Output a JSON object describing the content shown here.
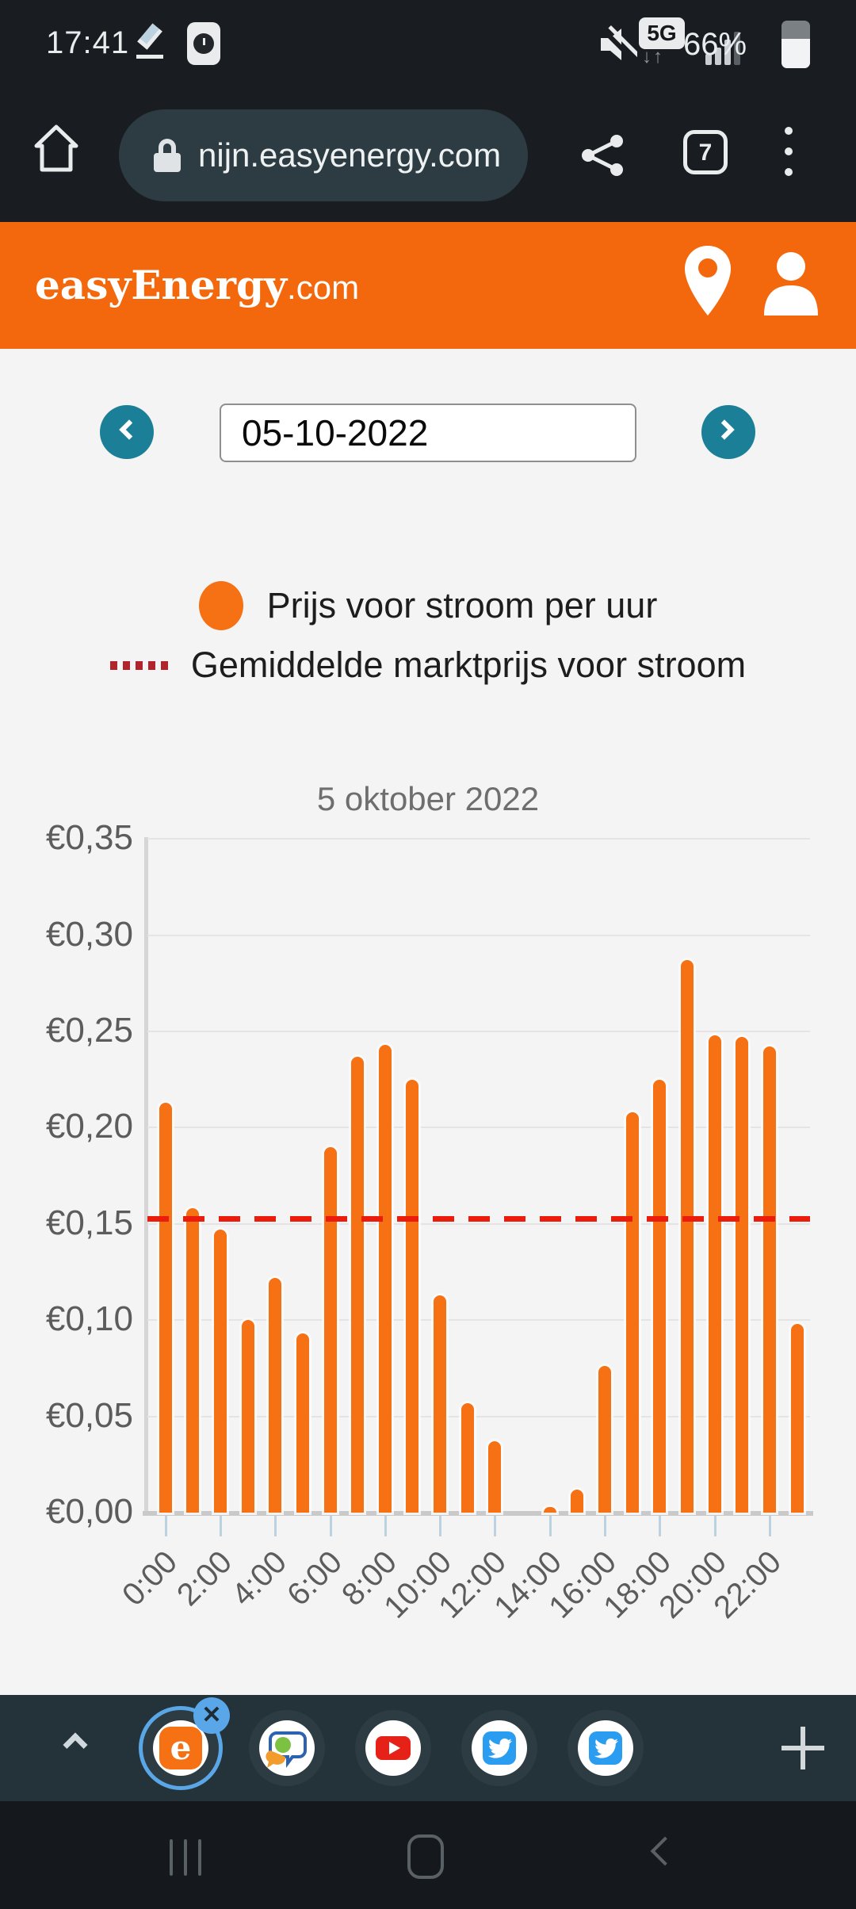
{
  "status_bar": {
    "time": "17:41",
    "battery": "66%",
    "network": "5G",
    "net_arrows": "↓↑"
  },
  "browser": {
    "url": "nijn.easyenergy.com",
    "tab_count": "7"
  },
  "site_header": {
    "brand": "easyEnergy",
    "tld": ".com"
  },
  "date_nav": {
    "value": "05-10-2022"
  },
  "legend": {
    "series_label": "Prijs voor stroom per uur",
    "average_label": "Gemiddelde marktprijs voor stroom"
  },
  "colors": {
    "accent_orange": "#f3680d",
    "bar_orange": "#f57113",
    "teal_button": "#1a7f97",
    "average_red": "#ec1c0c",
    "legend_dash_red": "#b3232b",
    "page_bg": "#f4f4f4",
    "toolbar_bg": "#24333a"
  },
  "chart_data": {
    "type": "bar",
    "title": "5 oktober 2022",
    "ylabel": "",
    "xlabel": "",
    "currency": "EUR/kWh",
    "ylim": [
      0,
      0.35
    ],
    "ytick_labels": [
      "€0,35",
      "€0,30",
      "€0,25",
      "€0,20",
      "€0,15",
      "€0,10",
      "€0,05",
      "€0,00"
    ],
    "xtick_labels": [
      "0:00",
      "2:00",
      "4:00",
      "6:00",
      "8:00",
      "10:00",
      "12:00",
      "14:00",
      "16:00",
      "18:00",
      "20:00",
      "22:00"
    ],
    "hours": [
      0,
      1,
      2,
      3,
      4,
      5,
      6,
      7,
      8,
      9,
      10,
      11,
      12,
      13,
      14,
      15,
      16,
      17,
      18,
      19,
      20,
      21,
      22,
      23
    ],
    "values": [
      0.213,
      0.158,
      0.147,
      0.1,
      0.122,
      0.093,
      0.19,
      0.237,
      0.243,
      0.225,
      0.113,
      0.057,
      0.037,
      null,
      0.003,
      0.012,
      0.076,
      0.208,
      0.225,
      0.287,
      0.248,
      0.247,
      0.242,
      0.098
    ],
    "average_market_price": 0.154,
    "grid": true,
    "legend_position": "top",
    "series_name": "Prijs voor stroom per uur",
    "average_series_name": "Gemiddelde marktprijs voor stroom"
  },
  "bubble_bar": {
    "active_label": "e",
    "close_label": "✕",
    "icons": [
      "easyenergy",
      "chat",
      "youtube",
      "twitter",
      "twitter"
    ]
  }
}
